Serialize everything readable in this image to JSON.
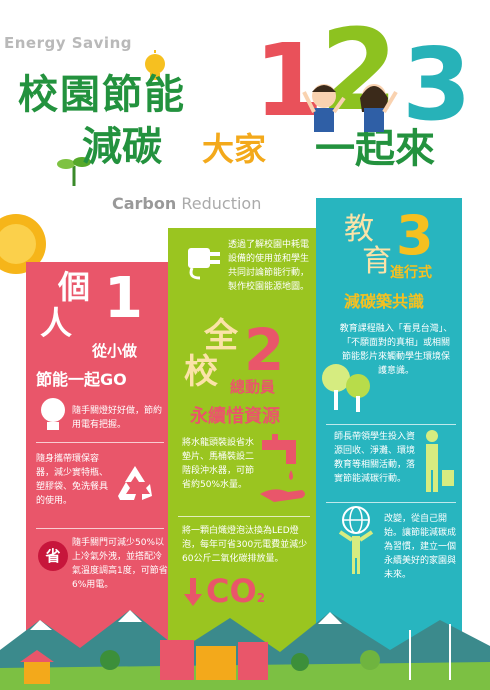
{
  "header": {
    "energy_saving": "Energy Saving",
    "title_line1": "校園節能",
    "title_line2_a": "減碳",
    "title_line2_b": "大家",
    "title_line2_c": "一起來",
    "carbon_bold": "Carbon",
    "carbon_rest": " Reduction",
    "num1": "1",
    "num2": "2",
    "num3": "3"
  },
  "col1": {
    "big_char1": "個",
    "big_char2": "人",
    "big_num": "1",
    "subtitle1": "從小做",
    "subtitle2": "節能一起GO",
    "item1": "隨手關燈好好做，節約用電有把握。",
    "item2": "隨身攜帶環保容器，減少實特瓶、塑膠袋、免洗餐具的使用。",
    "badge": "省",
    "item3": "隨手關門可減少50%以上冷氣外洩，並搭配冷氣溫度調高1度，可節省6%用電。"
  },
  "col2": {
    "intro": "透過了解校園中耗電設備的使用並和學生共同討論節能行動，製作校園能源地圖。",
    "big_char1": "全",
    "big_char2": "校",
    "big_num": "2",
    "subtitle1": "總動員",
    "subtitle2": "永續惜資源",
    "item1": "將水龍頭裝設省水墊片、馬桶裝設二階段沖水器，可節省約50%水量。",
    "item2": "將一顆白熾燈泡汰換為LED燈泡，每年可省300元電費並減少60公斤二氧化碳排放量。",
    "co2": "CO",
    "co2_sub": "2"
  },
  "col3": {
    "big_char1": "教",
    "big_char2": "育",
    "big_num": "3",
    "subtitle1": "進行式",
    "subtitle2": "減碳築共識",
    "item1": "教育課程融入「看見台灣」、「不願面對的真相」或相關節能影片來觸動學生環境保護意識。",
    "item2": "師長帶領學生投入資源回收、淨灘、環境教育等相關活動，落實節能減碳行動。",
    "item3": "改變，從自己開始。讓節能減碳成為習慣，建立一個永續美好的家園與未來。"
  },
  "colors": {
    "red": "#e9566a",
    "green": "#9ac520",
    "blue": "#28b5bf",
    "title_green": "#23923e",
    "orange": "#f3a91b"
  }
}
